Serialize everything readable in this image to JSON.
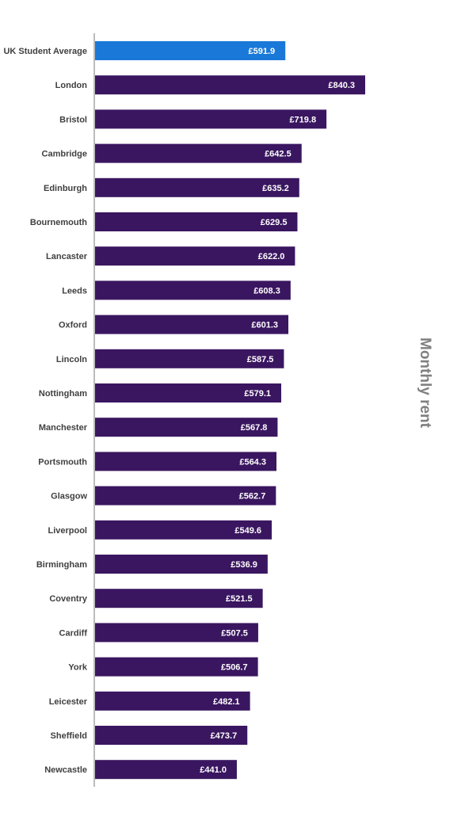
{
  "chart_data": {
    "type": "bar",
    "orientation": "horizontal",
    "categories": [
      "UK Student Average",
      "London",
      "Bristol",
      "Cambridge",
      "Edinburgh",
      "Bournemouth",
      "Lancaster",
      "Leeds",
      "Oxford",
      "Lincoln",
      "Nottingham",
      "Manchester",
      "Portsmouth",
      "Glasgow",
      "Liverpool",
      "Birmingham",
      "Coventry",
      "Cardiff",
      "York",
      "Leicester",
      "Sheffield",
      "Newcastle"
    ],
    "values": [
      591.9,
      840.3,
      719.8,
      642.5,
      635.2,
      629.5,
      622.0,
      608.3,
      601.3,
      587.5,
      579.1,
      567.8,
      564.3,
      562.7,
      549.6,
      536.9,
      521.5,
      507.5,
      506.7,
      482.1,
      473.7,
      441.0
    ],
    "value_labels": [
      "£591.9",
      "£840.3",
      "£719.8",
      "£642.5",
      "£635.2",
      "£629.5",
      "£622.0",
      "£608.3",
      "£601.3",
      "£587.5",
      "£579.1",
      "£567.8",
      "£564.3",
      "£562.7",
      "£549.6",
      "£536.9",
      "£521.5",
      "£507.5",
      "£506.7",
      "£482.1",
      "£473.7",
      "£441.0"
    ],
    "highlight_index": 0,
    "xlim": [
      0,
      840.3
    ],
    "axis_title": "Monthly rent",
    "grid": false,
    "legend": "none",
    "colors": {
      "bar": "#3a1660",
      "highlight": "#1a78d8",
      "axis": "#a6a6a6"
    }
  }
}
